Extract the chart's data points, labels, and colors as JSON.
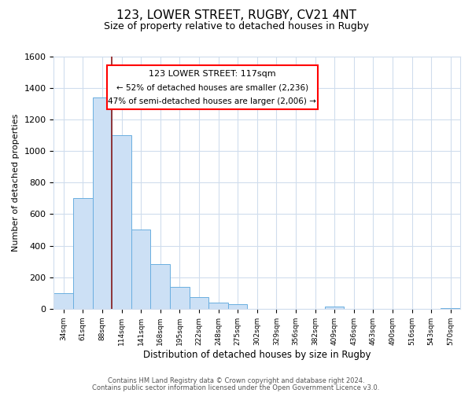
{
  "title": "123, LOWER STREET, RUGBY, CV21 4NT",
  "subtitle": "Size of property relative to detached houses in Rugby",
  "xlabel": "Distribution of detached houses by size in Rugby",
  "ylabel": "Number of detached properties",
  "footnote1": "Contains HM Land Registry data © Crown copyright and database right 2024.",
  "footnote2": "Contains public sector information licensed under the Open Government Licence v3.0.",
  "bar_labels": [
    "34sqm",
    "61sqm",
    "88sqm",
    "114sqm",
    "141sqm",
    "168sqm",
    "195sqm",
    "222sqm",
    "248sqm",
    "275sqm",
    "302sqm",
    "329sqm",
    "356sqm",
    "382sqm",
    "409sqm",
    "436sqm",
    "463sqm",
    "490sqm",
    "516sqm",
    "543sqm",
    "570sqm"
  ],
  "bar_values": [
    100,
    700,
    1340,
    1100,
    500,
    285,
    140,
    75,
    40,
    30,
    0,
    0,
    0,
    0,
    15,
    0,
    0,
    0,
    0,
    0,
    5
  ],
  "bar_color": "#cce0f5",
  "bar_edge_color": "#6aaee0",
  "grid_color": "#d0dded",
  "background_color": "#ffffff",
  "ylim": [
    0,
    1600
  ],
  "yticks": [
    0,
    200,
    400,
    600,
    800,
    1000,
    1200,
    1400,
    1600
  ],
  "property_label": "123 LOWER STREET: 117sqm",
  "annotation_line1": "← 52% of detached houses are smaller (2,236)",
  "annotation_line2": "47% of semi-detached houses are larger (2,006) →",
  "red_line_x": 2.5
}
